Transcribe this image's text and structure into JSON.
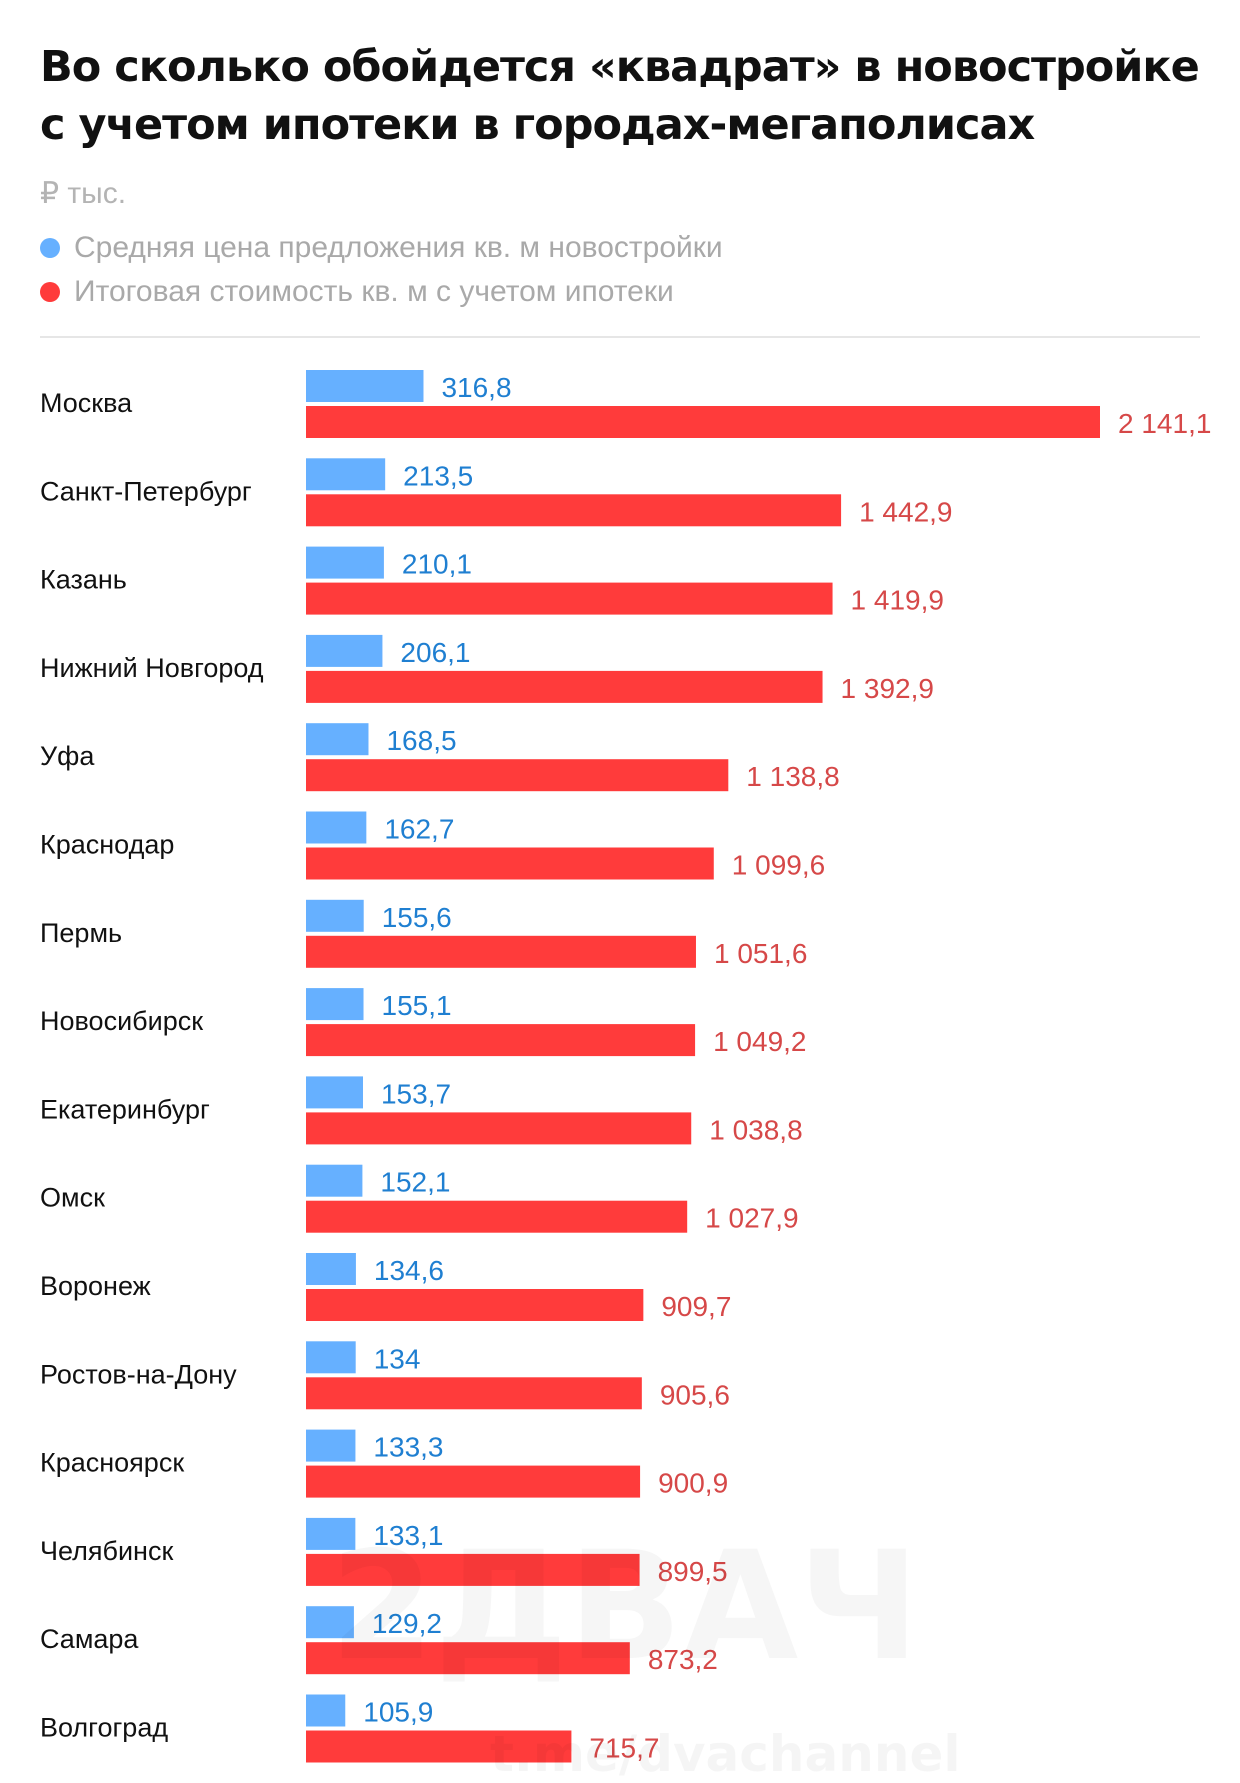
{
  "chart_data": {
    "type": "bar",
    "orientation": "horizontal",
    "title": "Во сколько обойдется «квадрат» в новостройке с учетом ипотеки в городах-мегаполисах",
    "unit": "₽ тыс.",
    "xlabel": "",
    "ylabel": "",
    "grid": false,
    "legend_position": "top-left",
    "categories": [
      "Москва",
      "Санкт-Петербург",
      "Казань",
      "Нижний Новгород",
      "Уфа",
      "Краснодар",
      "Пермь",
      "Новосибирск",
      "Екатеринбург",
      "Омск",
      "Воронеж",
      "Ростов-на-Дону",
      "Красноярск",
      "Челябинск",
      "Самара",
      "Волгоград"
    ],
    "series": [
      {
        "name": "Средняя цена предложения кв. м новостройки",
        "color": "#66b0ff",
        "label_color": "#1f7fd1",
        "values": [
          316.8,
          213.5,
          210.1,
          206.1,
          168.5,
          162.7,
          155.6,
          155.1,
          153.7,
          152.1,
          134.6,
          134,
          133.3,
          133.1,
          129.2,
          105.9
        ],
        "labels": [
          "316,8",
          "213,5",
          "210,1",
          "206,1",
          "168,5",
          "162,7",
          "155,6",
          "155,1",
          "153,7",
          "152,1",
          "134,6",
          "134",
          "133,3",
          "133,1",
          "129,2",
          "105,9"
        ]
      },
      {
        "name": "Итоговая стоимость кв. м с учетом ипотеки",
        "color": "#ff3b3b",
        "label_color": "#d64848",
        "values": [
          2141.1,
          1442.9,
          1419.9,
          1392.9,
          1138.8,
          1099.6,
          1051.6,
          1049.2,
          1038.8,
          1027.9,
          909.7,
          905.6,
          900.9,
          899.5,
          873.2,
          715.7
        ],
        "labels": [
          "2 141,1",
          "1 442,9",
          "1 419,9",
          "1 392,9",
          "1 138,8",
          "1 099,6",
          "1 051,6",
          "1 049,2",
          "1 038,8",
          "1 027,9",
          "909,7",
          "905,6",
          "900,9",
          "899,5",
          "873,2",
          "715,7"
        ]
      }
    ],
    "xlim": [
      0,
      2141.1
    ]
  },
  "watermark": {
    "logo": "2ДВАЧ",
    "link": "t.me/dvachannel"
  }
}
